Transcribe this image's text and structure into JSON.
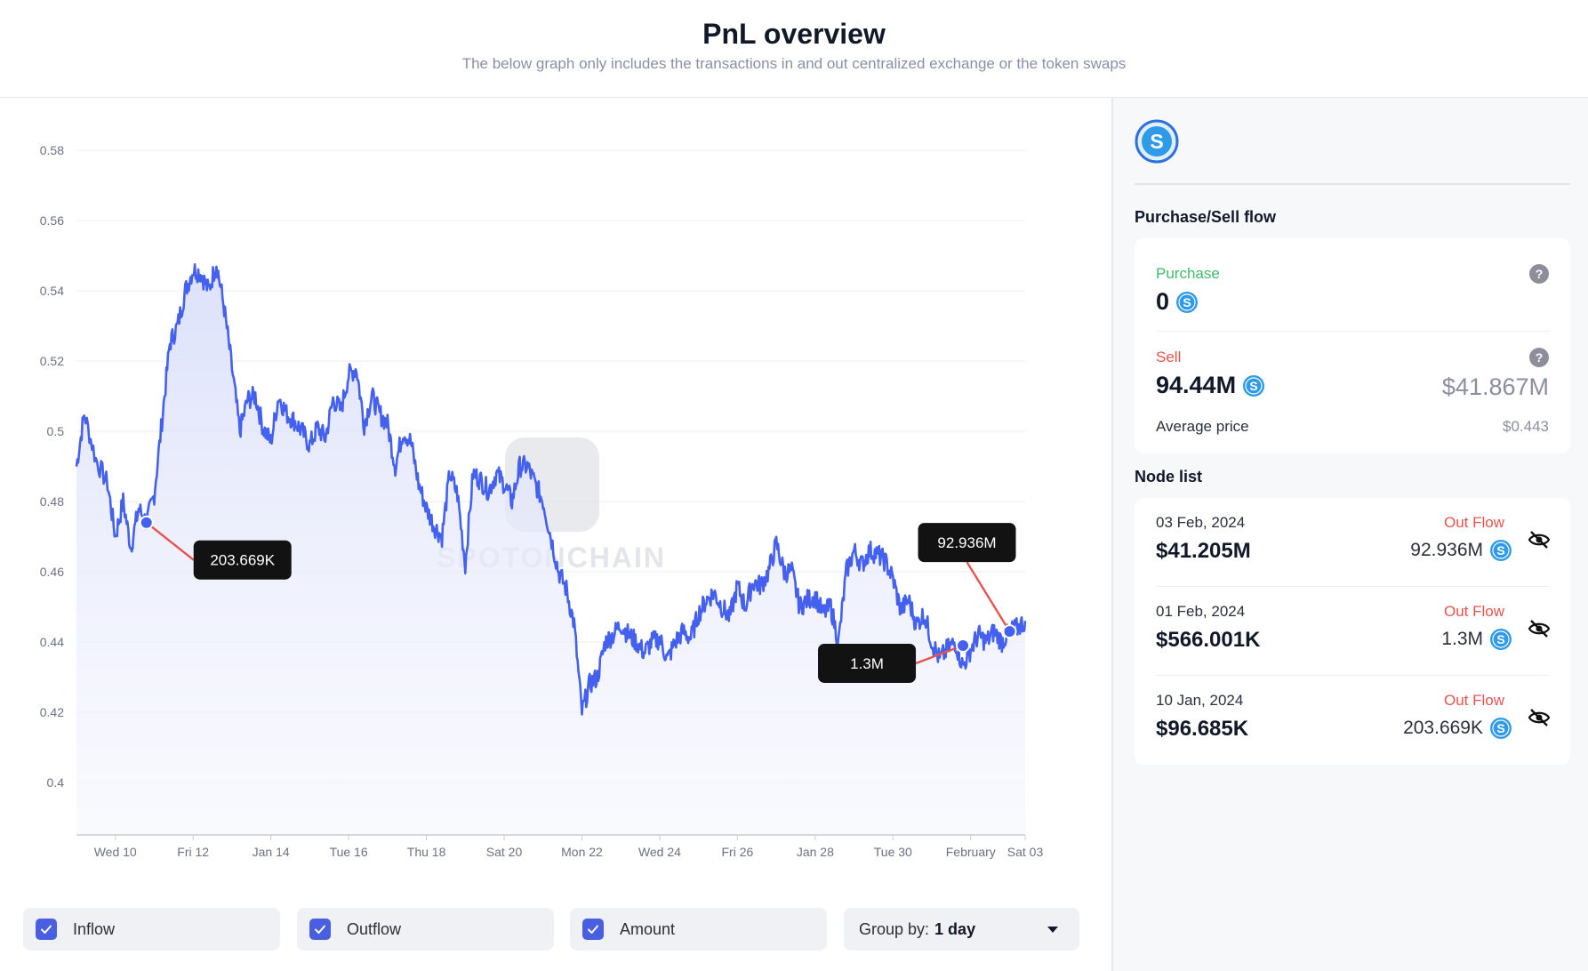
{
  "header": {
    "title": "PnL overview",
    "subtitle": "The below graph only includes the transactions in and out centralized exchange or the token swaps"
  },
  "chart_data": {
    "type": "area",
    "title": "",
    "xlabel": "",
    "ylabel": "",
    "ylim": [
      0.384,
      0.58
    ],
    "yticks": [
      "0.58",
      "0.56",
      "0.54",
      "0.52",
      "0.5",
      "0.48",
      "0.46",
      "0.44",
      "0.42",
      "0.4"
    ],
    "xticks": [
      "Wed 10",
      "Fri 12",
      "Jan 14",
      "Tue 16",
      "Thu 18",
      "Sat 20",
      "Mon 22",
      "Wed 24",
      "Fri 26",
      "Jan 28",
      "Tue 30",
      "February",
      "Sat 03"
    ],
    "grid": "horizontal",
    "watermark": "SPOTONCHAIN",
    "series": [
      {
        "color": "#4361ee",
        "x": [
          9.0,
          9.2,
          9.5,
          9.8,
          10.0,
          10.2,
          10.4,
          10.6,
          10.8,
          11.0,
          11.2,
          11.4,
          11.6,
          11.8,
          12.0,
          12.2,
          12.4,
          12.6,
          12.8,
          13.0,
          13.2,
          13.4,
          13.6,
          13.8,
          14.0,
          14.2,
          14.4,
          14.6,
          14.8,
          15.0,
          15.2,
          15.4,
          15.6,
          15.8,
          16.0,
          16.2,
          16.4,
          16.6,
          16.8,
          17.0,
          17.2,
          17.4,
          17.6,
          17.8,
          18.0,
          18.2,
          18.4,
          18.6,
          18.8,
          19.0,
          19.2,
          19.4,
          19.6,
          19.8,
          20.0,
          20.2,
          20.4,
          20.6,
          20.8,
          21.0,
          21.2,
          21.4,
          21.6,
          21.8,
          22.0,
          22.2,
          22.4,
          22.6,
          22.8,
          23.0,
          23.2,
          23.4,
          23.6,
          23.8,
          24.0,
          24.2,
          24.4,
          24.6,
          24.8,
          25.0,
          25.2,
          25.4,
          25.6,
          25.8,
          26.0,
          26.2,
          26.4,
          26.6,
          26.8,
          27.0,
          27.2,
          27.4,
          27.6,
          27.8,
          28.0,
          28.2,
          28.4,
          28.6,
          28.8,
          29.0,
          29.2,
          29.4,
          29.6,
          29.8,
          30.0,
          30.2,
          30.4,
          30.6,
          30.8,
          31.0,
          31.2,
          31.4,
          31.6,
          31.8,
          32.0,
          32.2,
          32.4,
          32.6,
          32.8,
          33.0,
          33.2,
          33.4
        ],
        "y": [
          0.49,
          0.505,
          0.492,
          0.485,
          0.47,
          0.48,
          0.467,
          0.478,
          0.474,
          0.482,
          0.503,
          0.525,
          0.53,
          0.54,
          0.546,
          0.545,
          0.54,
          0.548,
          0.535,
          0.518,
          0.5,
          0.509,
          0.51,
          0.501,
          0.497,
          0.51,
          0.505,
          0.503,
          0.5,
          0.496,
          0.501,
          0.498,
          0.509,
          0.506,
          0.516,
          0.518,
          0.502,
          0.51,
          0.505,
          0.502,
          0.49,
          0.5,
          0.497,
          0.485,
          0.478,
          0.473,
          0.47,
          0.488,
          0.482,
          0.462,
          0.488,
          0.486,
          0.483,
          0.488,
          0.485,
          0.48,
          0.49,
          0.49,
          0.485,
          0.48,
          0.47,
          0.46,
          0.455,
          0.445,
          0.42,
          0.428,
          0.43,
          0.44,
          0.442,
          0.445,
          0.442,
          0.44,
          0.437,
          0.44,
          0.441,
          0.435,
          0.44,
          0.443,
          0.441,
          0.448,
          0.452,
          0.454,
          0.45,
          0.447,
          0.456,
          0.45,
          0.457,
          0.456,
          0.46,
          0.468,
          0.46,
          0.46,
          0.45,
          0.452,
          0.453,
          0.448,
          0.45,
          0.44,
          0.46,
          0.466,
          0.462,
          0.466,
          0.465,
          0.463,
          0.458,
          0.449,
          0.452,
          0.445,
          0.448,
          0.44,
          0.435,
          0.438,
          0.44,
          0.433,
          0.438,
          0.442,
          0.44,
          0.443,
          0.44,
          0.443,
          0.444,
          0.446
        ]
      }
    ],
    "markers": [
      {
        "x": 10.8,
        "y": 0.474,
        "label": "203.669K"
      },
      {
        "x": 31.8,
        "y": 0.439,
        "label": "1.3M"
      },
      {
        "x": 33.0,
        "y": 0.443,
        "label": "92.936M"
      }
    ]
  },
  "legend": {
    "inflow": "Inflow",
    "outflow": "Outflow",
    "amount": "Amount",
    "groupby_label": "Group by:",
    "groupby_value": "1 day"
  },
  "sidebar": {
    "token_icon": "sand-s-icon",
    "flow_title": "Purchase/Sell flow",
    "purchase_label": "Purchase",
    "purchase_value": "0",
    "sell_label": "Sell",
    "sell_value": "94.44M",
    "sell_usd": "$41.867M",
    "avg_label": "Average price",
    "avg_value": "$0.443",
    "node_title": "Node list",
    "nodes": [
      {
        "date": "03 Feb, 2024",
        "usd": "$41.205M",
        "flow": "Out Flow",
        "amount": "92.936M"
      },
      {
        "date": "01 Feb, 2024",
        "usd": "$566.001K",
        "flow": "Out Flow",
        "amount": "1.3M"
      },
      {
        "date": "10 Jan, 2024",
        "usd": "$96.685K",
        "flow": "Out Flow",
        "amount": "203.669K"
      }
    ]
  },
  "colors": {
    "line": "#4361ee",
    "purchase": "#3dbb6b",
    "sell": "#e8534e",
    "checkbox": "#4a5fe0",
    "coin": "#2f9be8"
  }
}
